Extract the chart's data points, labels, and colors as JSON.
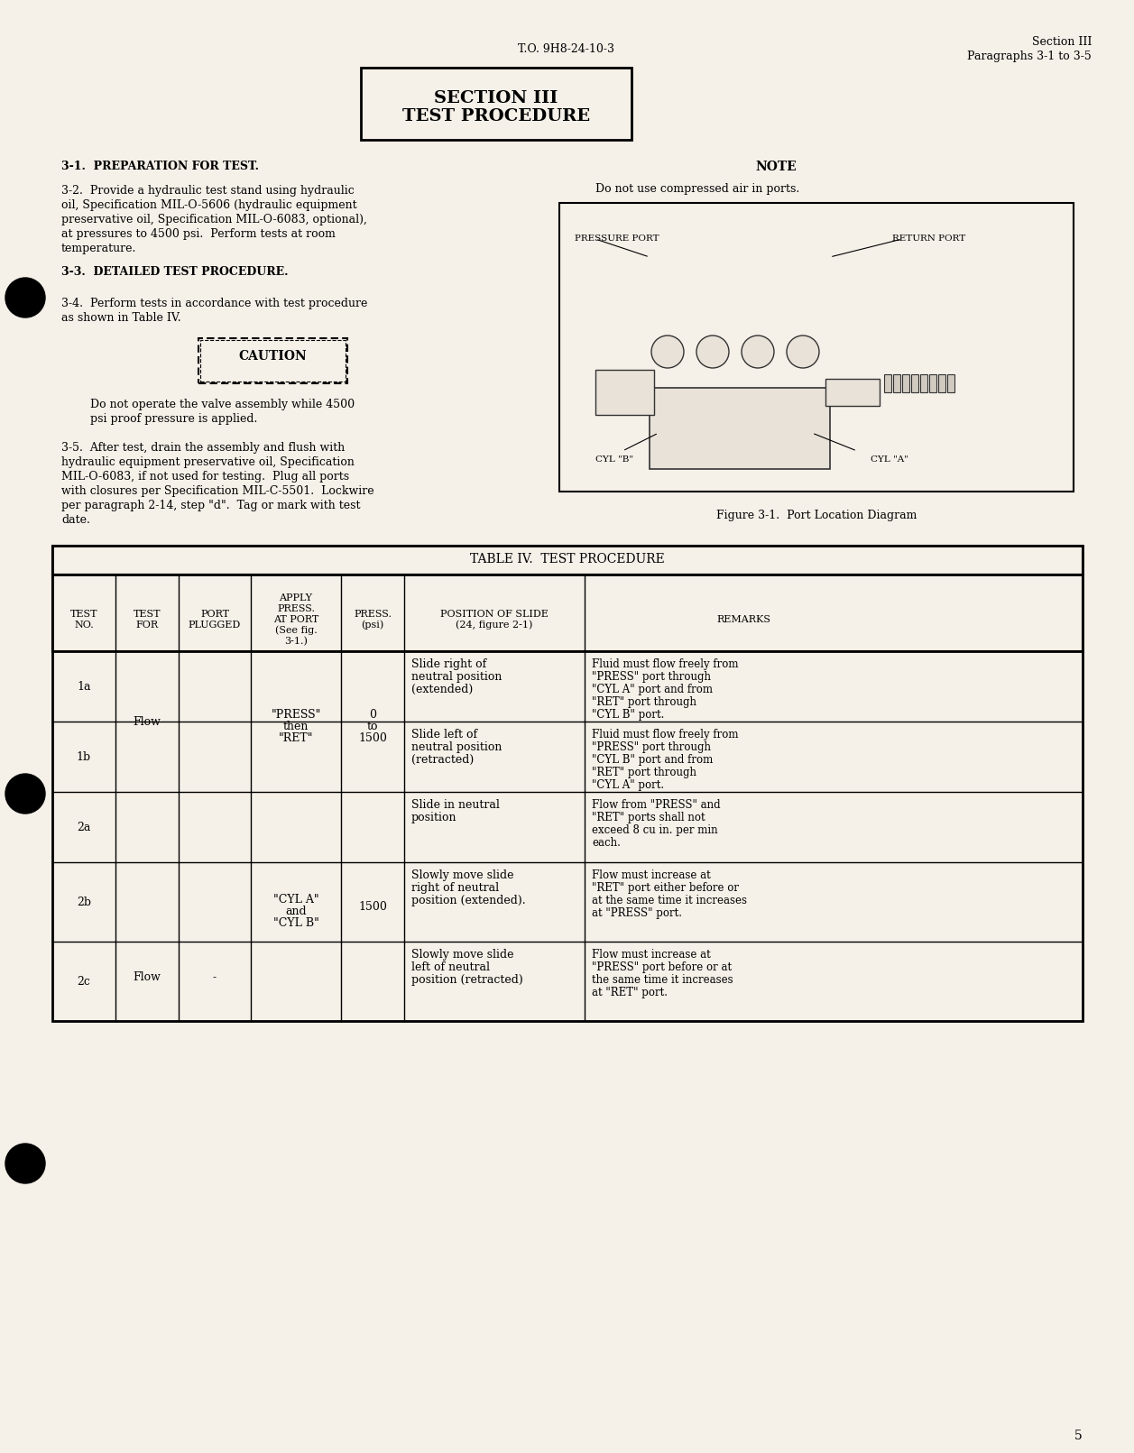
{
  "bg_color": "#f5f0e8",
  "page_number": "5",
  "header_center": "T.O. 9H8-24-10-3",
  "header_right_line1": "Section III",
  "header_right_line2": "Paragraphs 3-1 to 3-5",
  "section_box_title1": "SECTION III",
  "section_box_title2": "TEST PROCEDURE",
  "para_31_heading": "3-1.  PREPARATION FOR TEST.",
  "para_32": "3-2.  Provide a hydraulic test stand using hydraulic oil, Specification MIL-O-5606 (hydraulic equipment preservative oil, Specification MIL-O-6083, optional), at pressures to 4500 psi.  Perform tests at room temperature.",
  "para_33_heading": "3-3.  DETAILED TEST PROCEDURE.",
  "para_34": "3-4.  Perform tests in accordance with test procedure as shown in Table IV.",
  "caution_text": "Do not operate the valve assembly while 4500\npsi proof pressure is applied.",
  "para_35": "3-5.  After test, drain the assembly and flush with hydraulic equipment preservative oil, Specification MIL-O-6083, if not used for testing.  Plug all ports with closures per Specification MIL-C-5501.  Lockwire per paragraph 2-14, step \"d\".  Tag or mark with test date.",
  "note_heading": "NOTE",
  "note_text": "Do not use compressed air in ports.",
  "figure_caption": "Figure 3-1.  Port Location Diagram",
  "table_title": "TABLE IV.  TEST PROCEDURE",
  "col_headers": [
    "TEST\nNO.",
    "TEST\nFOR",
    "PORT\nPLUGGED",
    "APPLY\nPRESS.\nAT PORT\n(See fig.\n3-1.)",
    "PRESS.\n(psi)",
    "POSITION OF SLIDE\n(24, figure 2-1)",
    "REMARKS"
  ],
  "rows": [
    {
      "test_no": "1a",
      "test_for": "",
      "port_plugged": "",
      "apply_press": "",
      "press": "",
      "position": "Slide right of\nneutral position\n(extended)",
      "remarks": "Fluid must flow freely from\n\"PRESS\" port through\n\"CYL A\" port and from\n\"RET\" port through\n\"CYL B\" port."
    },
    {
      "test_no": "1b",
      "test_for": "Flow",
      "port_plugged": "-",
      "apply_press": "\"PRESS\"\nthen\n\"RET\"",
      "press": "0\nto\n1500",
      "position": "Slide left of\nneutral position\n(retracted)",
      "remarks": "Fluid must flow freely from\n\"PRESS\" port through\n\"CYL B\" port and from\n\"RET\" port through\n\"CYL A\" port."
    },
    {
      "test_no": "2a",
      "test_for": "",
      "port_plugged": "",
      "apply_press": "",
      "press": "",
      "position": "Slide in neutral\nposition",
      "remarks": "Flow from \"PRESS\" and\n\"RET\" ports shall not\nexceed 8 cu in. per min\neach."
    },
    {
      "test_no": "2b",
      "test_for": "Flow",
      "port_plugged": "-",
      "apply_press": "\"CYL A\"\nand\n\"CYL B\"",
      "press": "1500",
      "position": "Slowly move slide\nright of neutral\nposition (extended).",
      "remarks": "Flow must increase at\n\"RET\" port either before or\nat the same time it increases\nat \"PRESS\" port."
    },
    {
      "test_no": "2c",
      "test_for": "",
      "port_plugged": "",
      "apply_press": "",
      "press": "",
      "position": "Slowly move slide\nleft of neutral\nposition (retracted)",
      "remarks": "Flow must increase at\n\"PRESS\" port before or at\nthe same time it increases\nat \"RET\" port."
    }
  ]
}
